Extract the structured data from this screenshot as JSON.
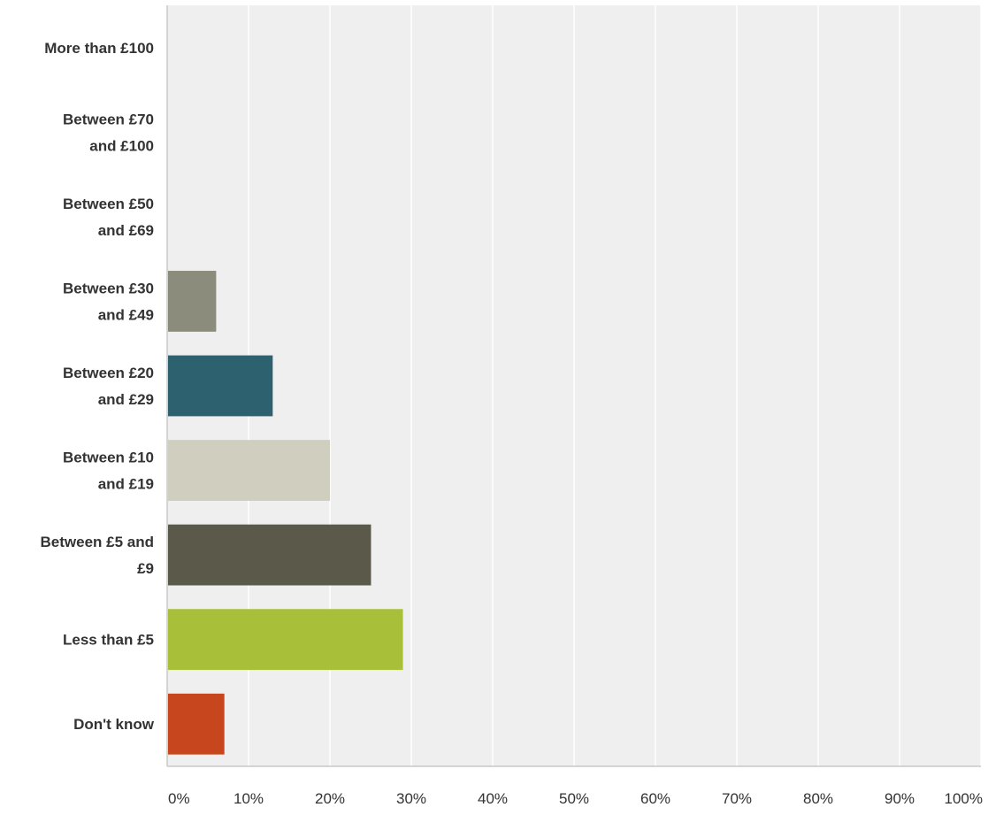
{
  "chart_data": {
    "type": "bar",
    "orientation": "horizontal",
    "categories": [
      [
        "More than £100"
      ],
      [
        "Between £70",
        "and £100"
      ],
      [
        "Between £50",
        "and £69"
      ],
      [
        "Between £30",
        "and £49"
      ],
      [
        "Between £20",
        "and £29"
      ],
      [
        "Between £10",
        "and £19"
      ],
      [
        "Between £5 and",
        "£9"
      ],
      [
        "Less than £5"
      ],
      [
        "Don't know"
      ]
    ],
    "values": [
      0,
      0,
      0,
      6.02,
      12.97,
      20.0,
      25.05,
      28.97,
      7.03
    ],
    "colors": [
      "#8c8c7c",
      "#8c8c7c",
      "#8c8c7c",
      "#8c8c7c",
      "#2e6170",
      "#cfcebf",
      "#5b5a4a",
      "#a8bf3a",
      "#c8461e"
    ],
    "xlim": [
      0,
      100
    ],
    "x_ticks": [
      "0%",
      "10%",
      "20%",
      "30%",
      "40%",
      "50%",
      "60%",
      "70%",
      "80%",
      "90%",
      "100%"
    ],
    "grid": true,
    "background": "#efefef",
    "gridline_color": "#ffffff"
  }
}
